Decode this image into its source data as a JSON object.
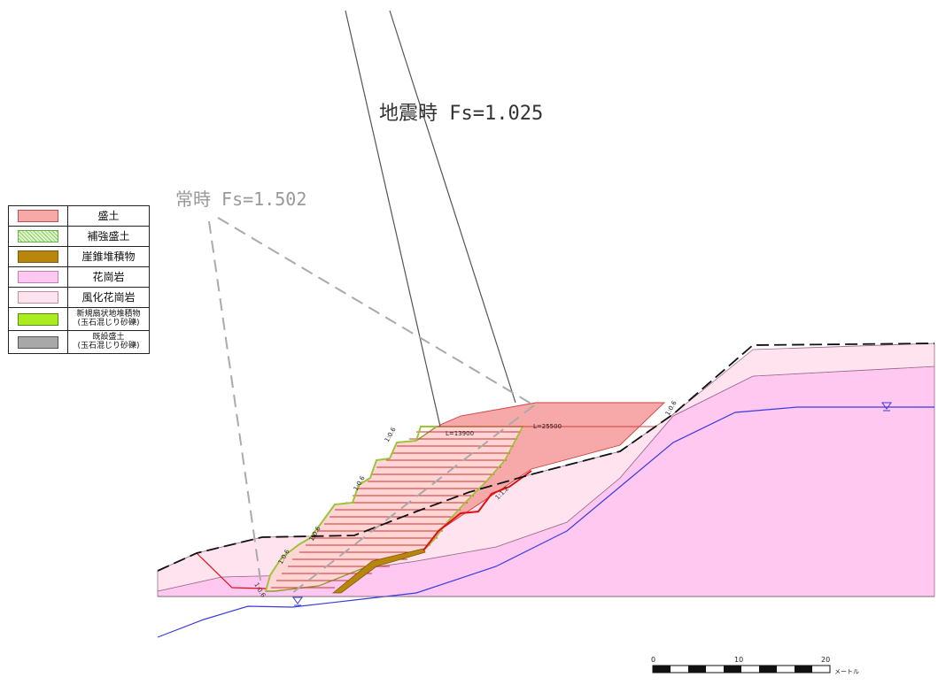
{
  "labels": {
    "seismic": "地震時 Fs=1.025",
    "normal": "常時 Fs=1.502",
    "len_short": "L=13900",
    "len_long": "L=25500"
  },
  "slope_marks": [
    "1:0.6",
    "1:0.6",
    "1:0.6",
    "1:0.6",
    "1:0.6",
    "1:0.6",
    "1:0.6",
    "1:1.2"
  ],
  "legend": [
    {
      "label": "盛土",
      "color": "#f7a8a8",
      "border": "#c05050"
    },
    {
      "label": "補強盛土",
      "color": "#dff5d0",
      "border": "#6ab04c",
      "pattern": "hatch"
    },
    {
      "label": "崖錐堆積物",
      "color": "#b8860b",
      "border": "#7a5a10"
    },
    {
      "label": "花崗岩",
      "color": "#ffc8f0",
      "border": "#c080b0"
    },
    {
      "label": "風化花崗岩",
      "color": "#ffe4ef",
      "border": "#c090a0"
    },
    {
      "label": "新規扇状地堆積物\n(玉石混じり砂礫)",
      "color": "#aaee22",
      "border": "#5a8a10"
    },
    {
      "label": "既設盛土\n(玉石混じり砂礫)",
      "color": "#a8a8a8",
      "border": "#555"
    }
  ],
  "scale": {
    "ticks": [
      "0",
      "10",
      "20"
    ],
    "unit": "メートル"
  },
  "colors": {
    "granite": "#ffc8f0",
    "weathered": "#ffe4ef",
    "fill": "#f7a8a8",
    "reinforced": "#ffe0e0",
    "talus": "#b8860b",
    "water": "#3b3bdd",
    "green": "#9ec43a"
  }
}
